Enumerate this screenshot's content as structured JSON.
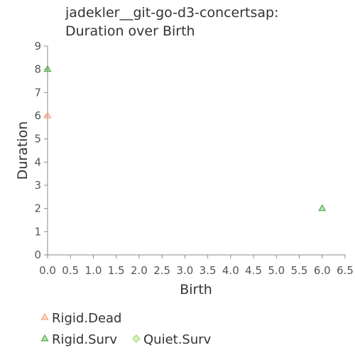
{
  "chart_data": {
    "type": "scatter",
    "title": [
      "jadekler__git-go-d3-concertsap:",
      "Duration over Birth"
    ],
    "xlabel": "Birth",
    "ylabel": "Duration",
    "xlim": [
      0,
      6.5
    ],
    "ylim": [
      0,
      9
    ],
    "x_ticks": [
      "0.0",
      "0.5",
      "1.0",
      "1.5",
      "2.0",
      "2.5",
      "3.0",
      "3.5",
      "4.0",
      "4.5",
      "5.0",
      "5.5",
      "6.0",
      "6.5"
    ],
    "y_ticks": [
      "0",
      "1",
      "2",
      "3",
      "4",
      "5",
      "6",
      "7",
      "8",
      "9"
    ],
    "grid": false,
    "legend_position": "bottom-left",
    "series": [
      {
        "name": "Rigid.Dead",
        "marker": "triangle",
        "color": "#f4a582",
        "points": [
          {
            "x": 0,
            "y": 6
          }
        ]
      },
      {
        "name": "Rigid.Surv",
        "marker": "triangle",
        "color": "#4daf4a",
        "points": [
          {
            "x": 0,
            "y": 8
          },
          {
            "x": 6,
            "y": 2
          }
        ]
      },
      {
        "name": "Quiet.Surv",
        "marker": "diamond",
        "color": "#a6d96a",
        "points": []
      }
    ]
  }
}
